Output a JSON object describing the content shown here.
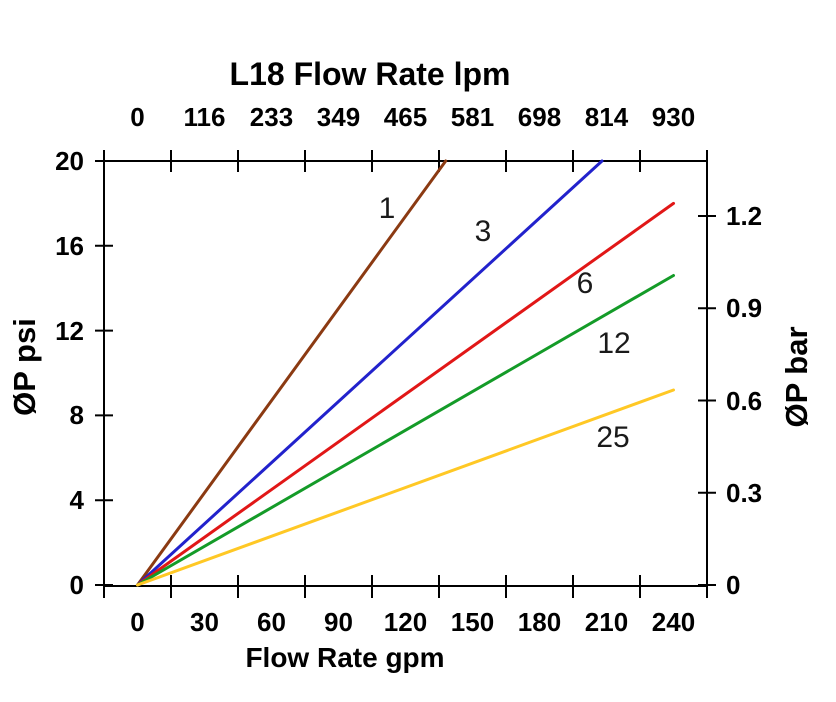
{
  "chart_data": {
    "type": "line",
    "title": "L18 Flow Rate lpm",
    "legend": "inline-labels",
    "grid": false,
    "axes": {
      "top": {
        "label": "L18 Flow Rate lpm",
        "unit": "lpm",
        "ticks": [
          "0",
          "116",
          "233",
          "349",
          "465",
          "581",
          "698",
          "814",
          "930"
        ]
      },
      "bottom": {
        "label": "Flow Rate gpm",
        "unit": "gpm",
        "ticks": [
          "0",
          "30",
          "60",
          "90",
          "120",
          "150",
          "180",
          "210",
          "240"
        ]
      },
      "left": {
        "label": "ØP psi",
        "unit": "psi",
        "ticks": [
          "0",
          "4",
          "8",
          "12",
          "16",
          "20"
        ],
        "range": [
          0,
          20
        ]
      },
      "right": {
        "label": "ØP bar",
        "unit": "bar",
        "ticks": [
          "0",
          "0.3",
          "0.6",
          "0.9",
          "1.2"
        ]
      }
    },
    "series": [
      {
        "label": "1",
        "color": "#8b3a12",
        "points_gpm_psi": [
          [
            0,
            0
          ],
          [
            138,
            20
          ]
        ]
      },
      {
        "label": "3",
        "color": "#2222cc",
        "points_gpm_psi": [
          [
            0,
            0
          ],
          [
            208,
            20
          ]
        ]
      },
      {
        "label": "6",
        "color": "#e11717",
        "points_gpm_psi": [
          [
            0,
            0
          ],
          [
            240,
            18
          ]
        ]
      },
      {
        "label": "12",
        "color": "#149b28",
        "points_gpm_psi": [
          [
            0,
            0
          ],
          [
            240,
            14.6
          ]
        ]
      },
      {
        "label": "25",
        "color": "#ffc825",
        "points_gpm_psi": [
          [
            0,
            0
          ],
          [
            240,
            9.2
          ]
        ]
      }
    ]
  }
}
